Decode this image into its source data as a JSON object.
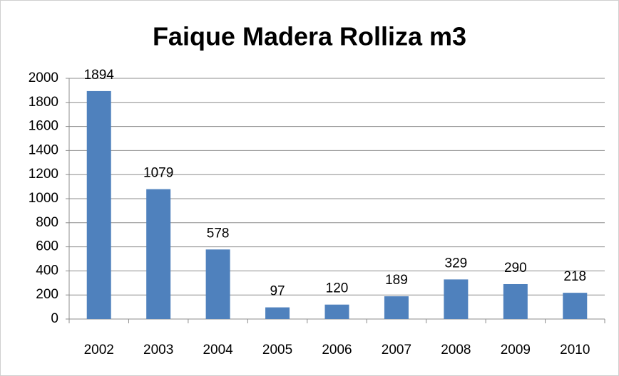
{
  "chart_data": {
    "type": "bar",
    "title": "Faique Madera Rolliza m3",
    "categories": [
      "2002",
      "2003",
      "2004",
      "2005",
      "2006",
      "2007",
      "2008",
      "2009",
      "2010"
    ],
    "values": [
      1894,
      1079,
      578,
      97,
      120,
      189,
      329,
      290,
      218
    ],
    "color": "#4f81bd",
    "ylim": [
      0,
      2000
    ],
    "yticks": [
      0,
      200,
      400,
      600,
      800,
      1000,
      1200,
      1400,
      1600,
      1800,
      2000
    ],
    "grid": true
  }
}
